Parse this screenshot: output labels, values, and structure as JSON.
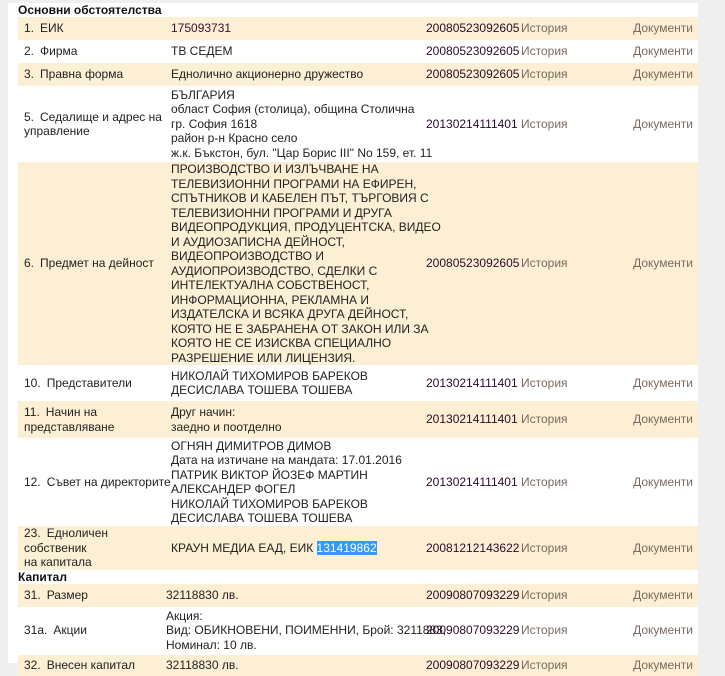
{
  "sections": [
    {
      "title": "Основни обстоятелства",
      "rows": [
        {
          "num": "1.",
          "label": [
            "ЕИК"
          ],
          "value": [
            "175093731"
          ],
          "date": "20080523092605",
          "history": "История",
          "documents": "Документи"
        },
        {
          "num": "2.",
          "label": [
            "Фирма"
          ],
          "value": [
            "ТВ СЕДЕМ"
          ],
          "date": "20080523092605",
          "history": "История",
          "documents": "Документи"
        },
        {
          "num": "3.",
          "label": [
            "Правна форма"
          ],
          "value": [
            "Еднолично акционерно дружество"
          ],
          "date": "20080523092605",
          "history": "История",
          "documents": "Документи"
        },
        {
          "num": "5.",
          "label": [
            "Седалище и адрес на",
            "управление"
          ],
          "value": [
            "БЪЛГАРИЯ",
            "област София (столица), община Столична",
            "гр. София 1618",
            "район р-н Красно село",
            "ж.к. Бъкстон, бул. \"Цар Борис III\" No 159, ет. 11"
          ],
          "date": "20130214111401",
          "history": "История",
          "documents": "Документи"
        },
        {
          "num": "6.",
          "label": [
            "Предмет на дейност"
          ],
          "value": [
            "ПРОИЗВОДСТВО И ИЗЛЪЧВАНЕ НА",
            "ТЕЛЕВИЗИОННИ ПРОГРАМИ НА ЕФИРЕН,",
            "СПЪТНИКОВ И КАБЕЛЕН ПЪТ, ТЪРГОВИЯ С",
            "ТЕЛЕВИЗИОННИ ПРОГРАМИ И ДРУГА",
            "ВИДЕОПРОДУКЦИЯ, ПРОДУЦЕНТСКА, ВИДЕО",
            "И АУДИОЗАПИСНА ДЕЙНОСТ,",
            "ВИДЕОПРОИЗВОДСТВО И",
            "АУДИОПРОИЗВОДСТВО, СДЕЛКИ С",
            "ИНТЕЛЕКТУАЛНА СОБСТВЕНОСТ,",
            "ИНФОРМАЦИОННА, РЕКЛАМНА И",
            "ИЗДАТЕЛСКА И ВСЯКА ДРУГА ДЕЙНОСТ,",
            "КОЯТО НЕ Е ЗАБРАНЕНА ОТ ЗАКОН ИЛИ ЗА",
            "КОЯТО НЕ СЕ ИЗИСКВА СПЕЦИАЛНО",
            "РАЗРЕШЕНИЕ ИЛИ ЛИЦЕНЗИЯ."
          ],
          "date": "20080523092605",
          "history": "История",
          "documents": "Документи"
        },
        {
          "num": "10.",
          "label": [
            "Представители"
          ],
          "value": [
            "НИКОЛАЙ ТИХОМИРОВ БАРЕКОВ",
            "ДЕСИСЛАВА ТОШЕВА ТОШЕВА"
          ],
          "date": "20130214111401",
          "history": "История",
          "documents": "Документи"
        },
        {
          "num": "11.",
          "label": [
            "Начин на",
            "представляване"
          ],
          "value": [
            "Друг начин:",
            "заедно и поотделно"
          ],
          "date": "20130214111401",
          "history": "История",
          "documents": "Документи"
        },
        {
          "num": "12.",
          "label": [
            "Съвет на директорите"
          ],
          "value": [
            "ОГНЯН ДИМИТРОВ ДИМОВ",
            "Дата на изтичане на мандата: 17.01.2016",
            "ПАТРИК ВИКТОР ЙОЗЕФ МАРТИН",
            "АЛЕКСАНДЕР ФОГЕЛ",
            "НИКОЛАЙ ТИХОМИРОВ БАРЕКОВ",
            "ДЕСИСЛАВА ТОШЕВА ТОШЕВА"
          ],
          "date": "20130214111401",
          "history": "История",
          "documents": "Документи"
        },
        {
          "num": "23.",
          "label": [
            "Едноличен собственик",
            "на капитала"
          ],
          "value": [
            "КРАУН МЕДИА ЕАД, ЕИК "
          ],
          "selected": "131419862",
          "date": "20081212143622",
          "history": "История",
          "documents": "Документи"
        }
      ]
    },
    {
      "title": "Капитал",
      "rows": [
        {
          "num": "31.",
          "label": [
            "Размер"
          ],
          "value": [
            "32118830 лв."
          ],
          "date": "20090807093229",
          "history": "История",
          "documents": "Документи"
        },
        {
          "num": "31а.",
          "label": [
            "Акции"
          ],
          "value": [
            "Акция:",
            "Вид: ОБИКНОВЕНИ, ПОИМЕННИ, Брой: 3211883,",
            "Номинал: 10 лв."
          ],
          "date": "20090807093229",
          "history": "История",
          "documents": "Документи"
        },
        {
          "num": "32.",
          "label": [
            "Внесен капитал"
          ],
          "value": [
            "32118830 лв."
          ],
          "date": "20090807093229",
          "history": "История",
          "documents": "Документи"
        }
      ]
    }
  ],
  "colors": {
    "odd_row": "#fdefd3",
    "link": "#7a6a62",
    "selection": "#3399ff"
  }
}
